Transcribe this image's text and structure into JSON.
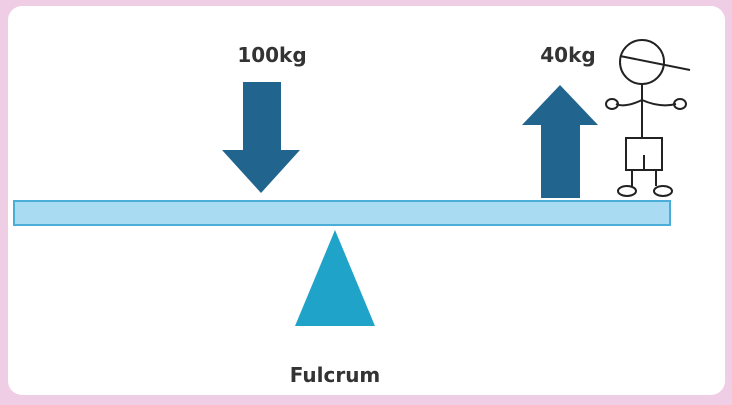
{
  "labels": {
    "load": "100kg",
    "effort": "40kg",
    "fulcrum": "Fulcrum"
  }
}
